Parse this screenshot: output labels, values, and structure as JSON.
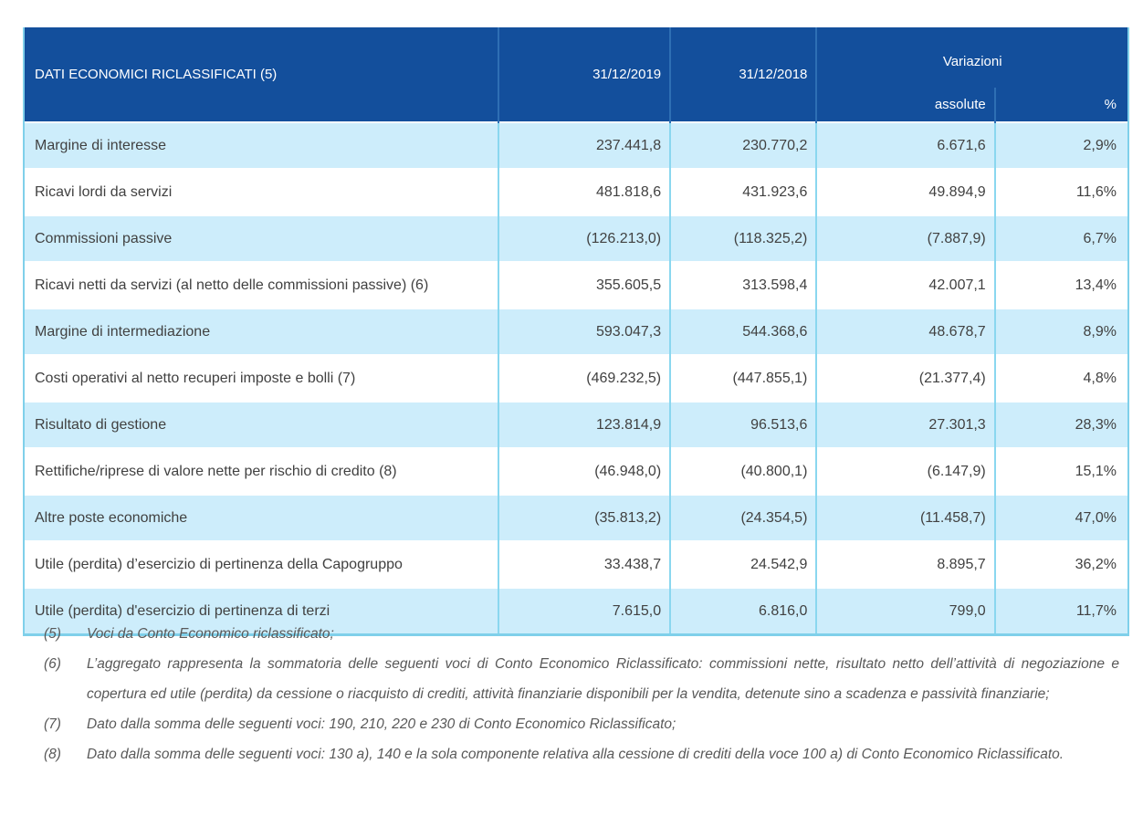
{
  "table": {
    "header": {
      "title": "DATI ECONOMICI RICLASSIFICATI (5)",
      "col_2019": "31/12/2019",
      "col_2018": "31/12/2018",
      "variazioni": "Variazioni",
      "assolute": "assolute",
      "percent": "%"
    },
    "rows": [
      {
        "label": "Margine di interesse",
        "v2019": "237.441,8",
        "v2018": "230.770,2",
        "abs": "6.671,6",
        "pct": "2,9%"
      },
      {
        "label": "Ricavi lordi da servizi",
        "v2019": "481.818,6",
        "v2018": "431.923,6",
        "abs": "49.894,9",
        "pct": "11,6%"
      },
      {
        "label": "Commissioni passive",
        "v2019": "(126.213,0)",
        "v2018": "(118.325,2)",
        "abs": "(7.887,9)",
        "pct": "6,7%"
      },
      {
        "label": "Ricavi netti da servizi (al netto delle commissioni passive) (6)",
        "v2019": "355.605,5",
        "v2018": "313.598,4",
        "abs": "42.007,1",
        "pct": "13,4%"
      },
      {
        "label": "Margine di intermediazione",
        "v2019": "593.047,3",
        "v2018": "544.368,6",
        "abs": "48.678,7",
        "pct": "8,9%"
      },
      {
        "label": "Costi operativi al netto recuperi imposte e bolli (7)",
        "v2019": "(469.232,5)",
        "v2018": "(447.855,1)",
        "abs": "(21.377,4)",
        "pct": "4,8%"
      },
      {
        "label": "Risultato di gestione",
        "v2019": "123.814,9",
        "v2018": "96.513,6",
        "abs": "27.301,3",
        "pct": "28,3%"
      },
      {
        "label": "Rettifiche/riprese di valore nette per rischio di credito (8)",
        "v2019": "(46.948,0)",
        "v2018": "(40.800,1)",
        "abs": "(6.147,9)",
        "pct": "15,1%"
      },
      {
        "label": "Altre poste economiche",
        "v2019": "(35.813,2)",
        "v2018": "(24.354,5)",
        "abs": "(11.458,7)",
        "pct": "47,0%"
      },
      {
        "label": "Utile (perdita) d’esercizio di pertinenza della Capogruppo",
        "v2019": "33.438,7",
        "v2018": "24.542,9",
        "abs": "8.895,7",
        "pct": "36,2%"
      },
      {
        "label": "Utile (perdita) d'esercizio di pertinenza di terzi",
        "v2019": "7.615,0",
        "v2018": "6.816,0",
        "abs": "799,0",
        "pct": "11,7%"
      }
    ]
  },
  "footnotes": [
    {
      "marker": "(5)",
      "text": "Voci da Conto Economico riclassificato;"
    },
    {
      "marker": "(6)",
      "text": "L’aggregato rappresenta la sommatoria delle seguenti voci di Conto Economico Riclassificato: commissioni nette, risultato netto dell’attività di negoziazione e copertura ed utile (perdita) da cessione o riacquisto di crediti, attività finanziarie disponibili per la vendita, detenute sino a scadenza e passività finanziarie;"
    },
    {
      "marker": "(7)",
      "text": "Dato dalla somma delle seguenti voci: 190, 210, 220 e 230 di Conto Economico Riclassificato;"
    },
    {
      "marker": "(8)",
      "text": "Dato dalla somma delle seguenti voci: 130 a), 140 e la sola componente relativa alla cessione di crediti della voce 100 a) di Conto Economico Riclassificato."
    }
  ],
  "colors": {
    "header_bg": "#134F9C",
    "header_divider": "#2E6FB4",
    "row_alt_bg": "#CDEDFB",
    "column_divider": "#8AD7EF",
    "table_border": "#7FD0EA",
    "body_text": "#414141",
    "footnote_text": "#595959"
  }
}
